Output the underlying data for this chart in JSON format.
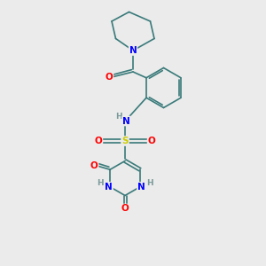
{
  "background_color": "#ebebeb",
  "atom_colors": {
    "C": "#3a7a7a",
    "N": "#0000ff",
    "O": "#ff0000",
    "S": "#cccc00",
    "H": "#7a9a9a"
  },
  "bond_color": "#3a7a7a",
  "figsize": [
    3.0,
    3.0
  ],
  "dpi": 100
}
